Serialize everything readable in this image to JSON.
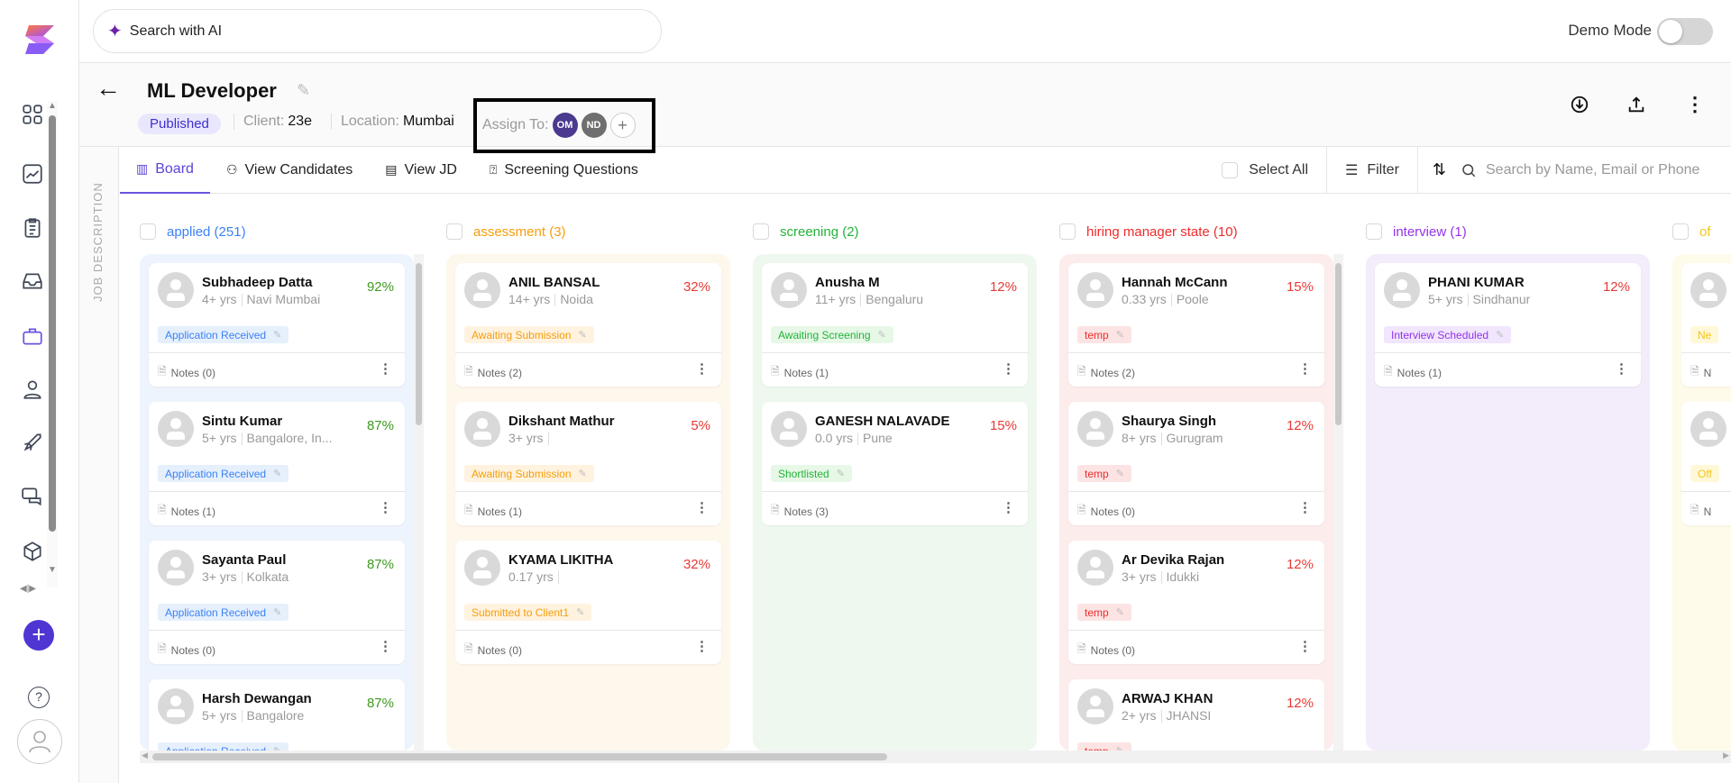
{
  "topbar": {
    "search_label": "Search with AI",
    "demo_mode_label": "Demo Mode",
    "demo_mode_on": false
  },
  "job": {
    "title": "ML Developer",
    "status": "Published",
    "client_label": "Client:",
    "client": "23e",
    "location_label": "Location:",
    "location": "Mumbai",
    "assign_label": "Assign To:",
    "assignees": [
      {
        "initials": "OM",
        "color": "#4b3a8f"
      },
      {
        "initials": "ND",
        "color": "#6f6f6f"
      }
    ]
  },
  "side_panel": {
    "label": "JOB DESCRIPTION"
  },
  "tabs": [
    {
      "label": "Board",
      "icon": "board-icon",
      "active": true
    },
    {
      "label": "View Candidates",
      "icon": "users-icon"
    },
    {
      "label": "View JD",
      "icon": "document-icon"
    },
    {
      "label": "Screening Questions",
      "icon": "question-chat-icon"
    }
  ],
  "toolbar": {
    "select_all": "Select All",
    "filter": "Filter",
    "search_placeholder": "Search by Name, Email or Phone"
  },
  "columns": [
    {
      "label": "applied (251)",
      "color": "#3b82f6",
      "bg": "#eef4fd",
      "tagbg": "#e6f0fd",
      "scroll": true,
      "cards": [
        {
          "name": "Subhadeep Datta",
          "exp": "4+ yrs",
          "location": "Navi Mumbai",
          "match": "92%",
          "tag": "Application Received",
          "notes": "Notes (0)"
        },
        {
          "name": "Sintu Kumar",
          "exp": "5+ yrs",
          "location": "Bangalore, In...",
          "match": "87%",
          "tag": "Application Received",
          "notes": "Notes (1)"
        },
        {
          "name": "Sayanta Paul",
          "exp": "3+ yrs",
          "location": "Kolkata",
          "match": "87%",
          "tag": "Application Received",
          "notes": "Notes (0)"
        },
        {
          "name": "Harsh Dewangan",
          "exp": "5+ yrs",
          "location": "Bangalore",
          "match": "87%",
          "tag": "Application Received",
          "notes": ""
        }
      ]
    },
    {
      "label": "assessment (3)",
      "color": "#f59e0b",
      "bg": "#fef7ec",
      "tagbg": "#fff3e0",
      "scroll": false,
      "cards": [
        {
          "name": "ANIL BANSAL",
          "exp": "14+ yrs",
          "location": "Noida",
          "match": "32%",
          "tag": "Awaiting Submission",
          "notes": "Notes (2)"
        },
        {
          "name": "Dikshant Mathur",
          "exp": "3+ yrs",
          "location": "",
          "match": "5%",
          "tag": "Awaiting Submission",
          "notes": "Notes (1)"
        },
        {
          "name": "KYAMA LIKITHA",
          "exp": "0.17 yrs",
          "location": "",
          "match": "32%",
          "tag": "Submitted to Client1",
          "notes": "Notes (0)"
        }
      ]
    },
    {
      "label": "screening (2)",
      "color": "#22b33a",
      "bg": "#eef8ee",
      "tagbg": "#e7f8e7",
      "scroll": false,
      "cards": [
        {
          "name": "Anusha M",
          "exp": "11+ yrs",
          "location": "Bengaluru",
          "match": "12%",
          "tag": "Awaiting Screening",
          "notes": "Notes (1)"
        },
        {
          "name": "GANESH NALAVADE",
          "exp": "0.0 yrs",
          "location": "Pune",
          "match": "15%",
          "tag": "Shortlisted",
          "notes": "Notes (3)"
        }
      ]
    },
    {
      "label": "hiring manager state (10)",
      "color": "#ef2b2b",
      "bg": "#fdecec",
      "tagbg": "#fde4e4",
      "scroll": true,
      "cards": [
        {
          "name": "Hannah McCann",
          "exp": "0.33 yrs",
          "location": "Poole",
          "match": "15%",
          "tag": "temp",
          "notes": "Notes (2)"
        },
        {
          "name": "Shaurya Singh",
          "exp": "8+ yrs",
          "location": "Gurugram",
          "match": "12%",
          "tag": "temp",
          "notes": "Notes (0)"
        },
        {
          "name": "Ar Devika Rajan",
          "exp": "3+ yrs",
          "location": "Idukki",
          "match": "12%",
          "tag": "temp",
          "notes": "Notes (0)"
        },
        {
          "name": "ARWAJ KHAN",
          "exp": "2+ yrs",
          "location": "JHANSI",
          "match": "12%",
          "tag": "temp",
          "notes": ""
        }
      ]
    },
    {
      "label": "interview (1)",
      "color": "#9333ea",
      "bg": "#f3ecfb",
      "tagbg": "#f1e6fd",
      "scroll": false,
      "cards": [
        {
          "name": "PHANI KUMAR",
          "exp": "5+ yrs",
          "location": "Sindhanur",
          "match": "12%",
          "tag": "Interview Scheduled",
          "notes": "Notes (1)"
        }
      ]
    },
    {
      "label": "of",
      "color": "#f5c518",
      "bg": "#fffbea",
      "tagbg": "#fff8d8",
      "scroll": false,
      "cards": [
        {
          "name": "",
          "exp": "",
          "location": "",
          "match": "",
          "tag": "Ne",
          "notes": "N"
        },
        {
          "name": "",
          "exp": "",
          "location": "",
          "match": "",
          "tag": "Off",
          "notes": "N"
        }
      ]
    }
  ],
  "colors": {
    "match_high": "#3d9a1f",
    "match_low": "#e53935",
    "accent": "#5b44d6"
  }
}
